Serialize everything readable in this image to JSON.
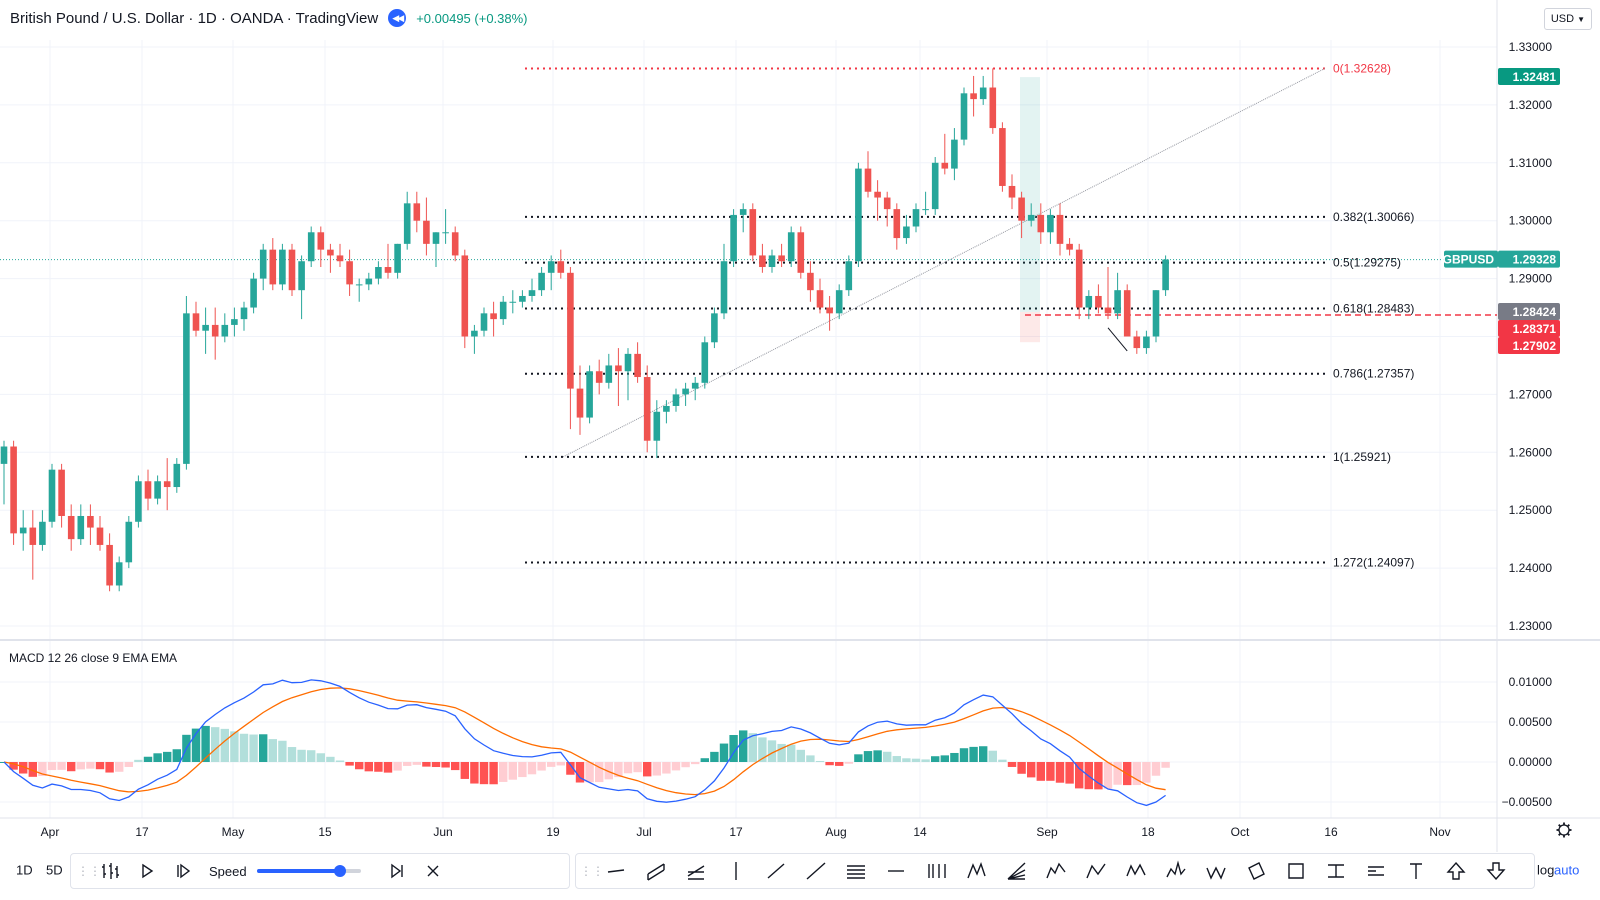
{
  "header": {
    "title": "British Pound / U.S. Dollar · 1D · OANDA · TradingView",
    "change": "+0.00495 (+0.38%)"
  },
  "currency": {
    "label": "USD"
  },
  "price_axis": {
    "labels": [
      "1.33000",
      "1.32000",
      "1.31000",
      "1.30000",
      "1.29000",
      "1.28000",
      "1.27000",
      "1.26000",
      "1.25000",
      "1.24000",
      "1.23000"
    ]
  },
  "price_tags": {
    "high": "1.32481",
    "symbol": "GBPUSD",
    "last": "1.29328",
    "tag1": "1.28424",
    "tag2": "1.28371",
    "tag3": "1.27902"
  },
  "fib_levels": [
    {
      "label": "0(1.32628)",
      "price": 1.32628,
      "color": "#f23645"
    },
    {
      "label": "0.382(1.30066)",
      "price": 1.30066,
      "color": "#131722"
    },
    {
      "label": "0.5(1.29275)",
      "price": 1.29275,
      "color": "#131722"
    },
    {
      "label": "0.618(1.28483)",
      "price": 1.28483,
      "color": "#131722"
    },
    {
      "label": "0.786(1.27357)",
      "price": 1.27357,
      "color": "#131722"
    },
    {
      "label": "1(1.25921)",
      "price": 1.25921,
      "color": "#131722"
    },
    {
      "label": "1.272(1.24097)",
      "price": 1.24097,
      "color": "#131722"
    }
  ],
  "macd": {
    "label": "MACD 12 26 close 9 EMA EMA",
    "axis_labels": [
      "0.01000",
      "0.00500",
      "0.00000",
      "−0.00500"
    ]
  },
  "time_axis": {
    "labels": [
      "Apr",
      "17",
      "May",
      "15",
      "Jun",
      "19",
      "Jul",
      "17",
      "Aug",
      "14",
      "Sep",
      "18",
      "Oct",
      "16",
      "Nov"
    ]
  },
  "bottom": {
    "tf_1d": "1D",
    "tf_5d": "5D",
    "speed": "Speed",
    "speed_value": 0.8,
    "log": "log",
    "auto": "auto"
  },
  "colors": {
    "up": "#26a69a",
    "down": "#ef5350",
    "accent": "#2962ff",
    "macd_line": "#2962ff",
    "signal_line": "#ff6d00"
  },
  "chart_data": {
    "type": "candlestick",
    "symbol": "GBPUSD",
    "timeframe": "1D",
    "ylim": [
      1.225,
      1.335
    ],
    "candles": [
      [
        1.258,
        1.262,
        1.251,
        1.261
      ],
      [
        1.261,
        1.262,
        1.244,
        1.246
      ],
      [
        1.246,
        1.25,
        1.243,
        1.247
      ],
      [
        1.247,
        1.25,
        1.238,
        1.244
      ],
      [
        1.244,
        1.25,
        1.243,
        1.248
      ],
      [
        1.248,
        1.258,
        1.247,
        1.257
      ],
      [
        1.257,
        1.258,
        1.247,
        1.249
      ],
      [
        1.249,
        1.251,
        1.243,
        1.245
      ],
      [
        1.245,
        1.251,
        1.244,
        1.249
      ],
      [
        1.249,
        1.251,
        1.244,
        1.247
      ],
      [
        1.247,
        1.249,
        1.243,
        1.244
      ],
      [
        1.244,
        1.246,
        1.236,
        1.237
      ],
      [
        1.237,
        1.242,
        1.236,
        1.241
      ],
      [
        1.241,
        1.249,
        1.24,
        1.248
      ],
      [
        1.248,
        1.256,
        1.247,
        1.255
      ],
      [
        1.255,
        1.257,
        1.25,
        1.252
      ],
      [
        1.252,
        1.256,
        1.251,
        1.255
      ],
      [
        1.255,
        1.259,
        1.25,
        1.254
      ],
      [
        1.254,
        1.259,
        1.253,
        1.258
      ],
      [
        1.258,
        1.287,
        1.257,
        1.284
      ],
      [
        1.284,
        1.286,
        1.28,
        1.281
      ],
      [
        1.281,
        1.285,
        1.277,
        1.282
      ],
      [
        1.282,
        1.285,
        1.276,
        1.28
      ],
      [
        1.28,
        1.284,
        1.279,
        1.282
      ],
      [
        1.282,
        1.285,
        1.28,
        1.283
      ],
      [
        1.283,
        1.286,
        1.281,
        1.285
      ],
      [
        1.285,
        1.291,
        1.284,
        1.29
      ],
      [
        1.29,
        1.296,
        1.288,
        1.295
      ],
      [
        1.295,
        1.297,
        1.288,
        1.289
      ],
      [
        1.289,
        1.296,
        1.288,
        1.295
      ],
      [
        1.295,
        1.296,
        1.287,
        1.288
      ],
      [
        1.288,
        1.294,
        1.283,
        1.293
      ],
      [
        1.293,
        1.299,
        1.292,
        1.298
      ],
      [
        1.298,
        1.299,
        1.292,
        1.295
      ],
      [
        1.295,
        1.296,
        1.291,
        1.294
      ],
      [
        1.294,
        1.296,
        1.292,
        1.293
      ],
      [
        1.293,
        1.295,
        1.287,
        1.289
      ],
      [
        1.289,
        1.29,
        1.286,
        1.289
      ],
      [
        1.289,
        1.291,
        1.288,
        1.29
      ],
      [
        1.29,
        1.293,
        1.289,
        1.292
      ],
      [
        1.292,
        1.296,
        1.29,
        1.291
      ],
      [
        1.291,
        1.296,
        1.29,
        1.296
      ],
      [
        1.296,
        1.305,
        1.295,
        1.303
      ],
      [
        1.303,
        1.305,
        1.298,
        1.3
      ],
      [
        1.3,
        1.304,
        1.294,
        1.296
      ],
      [
        1.296,
        1.298,
        1.292,
        1.298
      ],
      [
        1.298,
        1.302,
        1.296,
        1.298
      ],
      [
        1.298,
        1.299,
        1.293,
        1.294
      ],
      [
        1.294,
        1.295,
        1.278,
        1.28
      ],
      [
        1.28,
        1.282,
        1.277,
        1.281
      ],
      [
        1.281,
        1.285,
        1.28,
        1.284
      ],
      [
        1.284,
        1.286,
        1.28,
        1.283
      ],
      [
        1.283,
        1.287,
        1.282,
        1.286
      ],
      [
        1.286,
        1.288,
        1.284,
        1.286
      ],
      [
        1.286,
        1.288,
        1.285,
        1.287
      ],
      [
        1.287,
        1.29,
        1.286,
        1.288
      ],
      [
        1.288,
        1.292,
        1.287,
        1.291
      ],
      [
        1.291,
        1.294,
        1.288,
        1.293
      ],
      [
        1.293,
        1.295,
        1.29,
        1.291
      ],
      [
        1.291,
        1.292,
        1.264,
        1.271
      ],
      [
        1.271,
        1.275,
        1.263,
        1.266
      ],
      [
        1.266,
        1.275,
        1.265,
        1.274
      ],
      [
        1.274,
        1.276,
        1.27,
        1.272
      ],
      [
        1.272,
        1.277,
        1.271,
        1.275
      ],
      [
        1.275,
        1.278,
        1.268,
        1.274
      ],
      [
        1.274,
        1.278,
        1.269,
        1.277
      ],
      [
        1.277,
        1.279,
        1.272,
        1.273
      ],
      [
        1.273,
        1.275,
        1.26,
        1.262
      ],
      [
        1.262,
        1.269,
        1.259,
        1.267
      ],
      [
        1.267,
        1.269,
        1.265,
        1.268
      ],
      [
        1.268,
        1.271,
        1.267,
        1.27
      ],
      [
        1.27,
        1.272,
        1.268,
        1.271
      ],
      [
        1.271,
        1.273,
        1.269,
        1.272
      ],
      [
        1.272,
        1.28,
        1.271,
        1.279
      ],
      [
        1.279,
        1.285,
        1.278,
        1.284
      ],
      [
        1.284,
        1.296,
        1.283,
        1.293
      ],
      [
        1.293,
        1.302,
        1.292,
        1.301
      ],
      [
        1.301,
        1.303,
        1.298,
        1.302
      ],
      [
        1.302,
        1.303,
        1.293,
        1.294
      ],
      [
        1.294,
        1.296,
        1.291,
        1.292
      ],
      [
        1.292,
        1.295,
        1.291,
        1.294
      ],
      [
        1.294,
        1.296,
        1.292,
        1.293
      ],
      [
        1.293,
        1.299,
        1.292,
        1.298
      ],
      [
        1.298,
        1.299,
        1.29,
        1.291
      ],
      [
        1.291,
        1.293,
        1.286,
        1.288
      ],
      [
        1.288,
        1.29,
        1.284,
        1.285
      ],
      [
        1.285,
        1.287,
        1.281,
        1.284
      ],
      [
        1.284,
        1.289,
        1.283,
        1.288
      ],
      [
        1.288,
        1.294,
        1.287,
        1.293
      ],
      [
        1.293,
        1.31,
        1.292,
        1.309
      ],
      [
        1.309,
        1.312,
        1.304,
        1.305
      ],
      [
        1.305,
        1.307,
        1.3,
        1.304
      ],
      [
        1.304,
        1.305,
        1.299,
        1.302
      ],
      [
        1.302,
        1.303,
        1.295,
        1.297
      ],
      [
        1.297,
        1.301,
        1.296,
        1.299
      ],
      [
        1.299,
        1.303,
        1.298,
        1.302
      ],
      [
        1.302,
        1.305,
        1.301,
        1.302
      ],
      [
        1.302,
        1.311,
        1.301,
        1.31
      ],
      [
        1.31,
        1.315,
        1.308,
        1.309
      ],
      [
        1.309,
        1.316,
        1.307,
        1.314
      ],
      [
        1.314,
        1.323,
        1.313,
        1.322
      ],
      [
        1.322,
        1.325,
        1.318,
        1.321
      ],
      [
        1.321,
        1.325,
        1.32,
        1.323
      ],
      [
        1.323,
        1.3263,
        1.315,
        1.316
      ],
      [
        1.316,
        1.317,
        1.305,
        1.306
      ],
      [
        1.306,
        1.308,
        1.302,
        1.304
      ],
      [
        1.304,
        1.305,
        1.297,
        1.3
      ],
      [
        1.3,
        1.303,
        1.299,
        1.301
      ],
      [
        1.301,
        1.303,
        1.296,
        1.298
      ],
      [
        1.298,
        1.302,
        1.296,
        1.301
      ],
      [
        1.301,
        1.303,
        1.294,
        1.296
      ],
      [
        1.296,
        1.297,
        1.294,
        1.295
      ],
      [
        1.295,
        1.296,
        1.283,
        1.285
      ],
      [
        1.285,
        1.288,
        1.283,
        1.287
      ],
      [
        1.287,
        1.289,
        1.284,
        1.285
      ],
      [
        1.285,
        1.292,
        1.283,
        1.284
      ],
      [
        1.284,
        1.291,
        1.283,
        1.288
      ],
      [
        1.288,
        1.289,
        1.28,
        1.28
      ],
      [
        1.28,
        1.281,
        1.277,
        1.278
      ],
      [
        1.278,
        1.281,
        1.277,
        1.28
      ],
      [
        1.28,
        1.288,
        1.279,
        1.288
      ],
      [
        1.288,
        1.294,
        1.287,
        1.2933
      ]
    ]
  }
}
